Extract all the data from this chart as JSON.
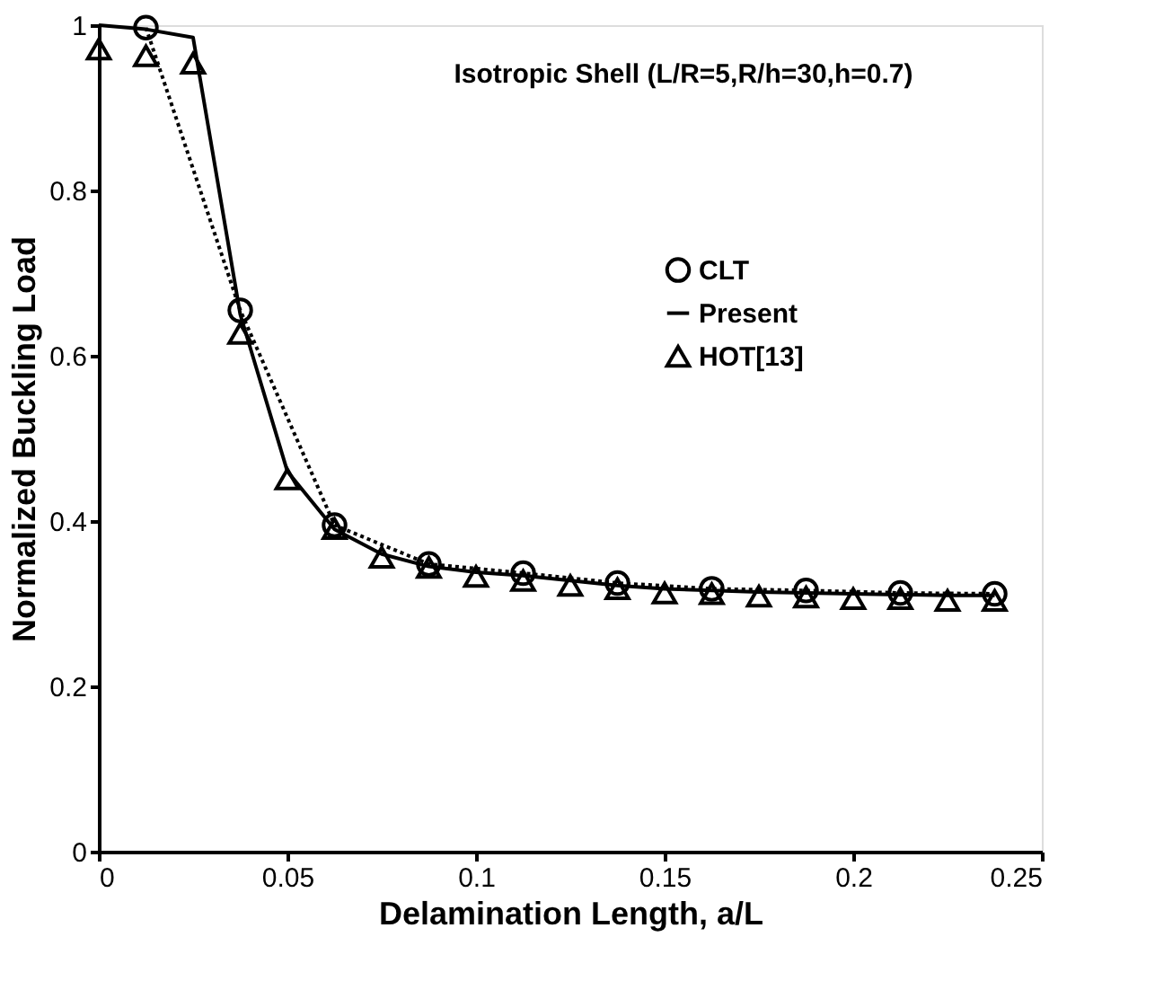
{
  "chart_data": {
    "type": "line",
    "xlabel": "Delamination Length, a/L",
    "ylabel": "Normalized Buckling Load",
    "annotations": [
      "Isotropic Shell (L/R=5,R/h=30,h=0.7)"
    ],
    "xlim": [
      0,
      0.25
    ],
    "xticks": [
      0,
      0.05,
      0.1,
      0.15,
      0.2,
      0.25
    ],
    "ylim": [
      0,
      1
    ],
    "yticks": [
      0,
      0.2,
      0.4,
      0.6,
      0.8,
      1
    ],
    "grid": false,
    "legend": "right",
    "series": [
      {
        "name": "CLT",
        "color": "#000000",
        "marker": "circle",
        "line_style": "dotted",
        "x": [
          0.0125,
          0.0375,
          0.0625,
          0.0875,
          0.1125,
          0.1375,
          0.1625,
          0.1875,
          0.2125,
          0.2375
        ],
        "values": [
          0.997,
          0.655,
          0.395,
          0.348,
          0.337,
          0.325,
          0.318,
          0.316,
          0.313,
          0.312
        ]
      },
      {
        "name": "Present",
        "color": "#000000",
        "marker": "none",
        "line_style": "solid",
        "x": [
          0,
          0.0125,
          0.025,
          0.0375,
          0.05,
          0.0625,
          0.075,
          0.0875,
          0.1,
          0.1125,
          0.125,
          0.1375,
          0.15,
          0.1625,
          0.175,
          0.1875,
          0.2,
          0.2125,
          0.225,
          0.2375
        ],
        "values": [
          1.0,
          0.995,
          0.985,
          0.65,
          0.46,
          0.39,
          0.36,
          0.345,
          0.338,
          0.334,
          0.328,
          0.322,
          0.318,
          0.316,
          0.314,
          0.313,
          0.312,
          0.311,
          0.31,
          0.31
        ]
      },
      {
        "name": "HOT[13]",
        "color": "#000000",
        "type": "scatter",
        "marker": "triangle",
        "x": [
          0,
          0.0125,
          0.025,
          0.0375,
          0.05,
          0.0625,
          0.075,
          0.0875,
          0.1,
          0.1125,
          0.125,
          0.1375,
          0.15,
          0.1625,
          0.175,
          0.1875,
          0.2,
          0.2125,
          0.225,
          0.2375
        ],
        "values": [
          0.971,
          0.963,
          0.954,
          0.627,
          0.451,
          0.391,
          0.356,
          0.344,
          0.333,
          0.328,
          0.322,
          0.318,
          0.313,
          0.312,
          0.309,
          0.308,
          0.306,
          0.306,
          0.304,
          0.304
        ]
      }
    ]
  }
}
